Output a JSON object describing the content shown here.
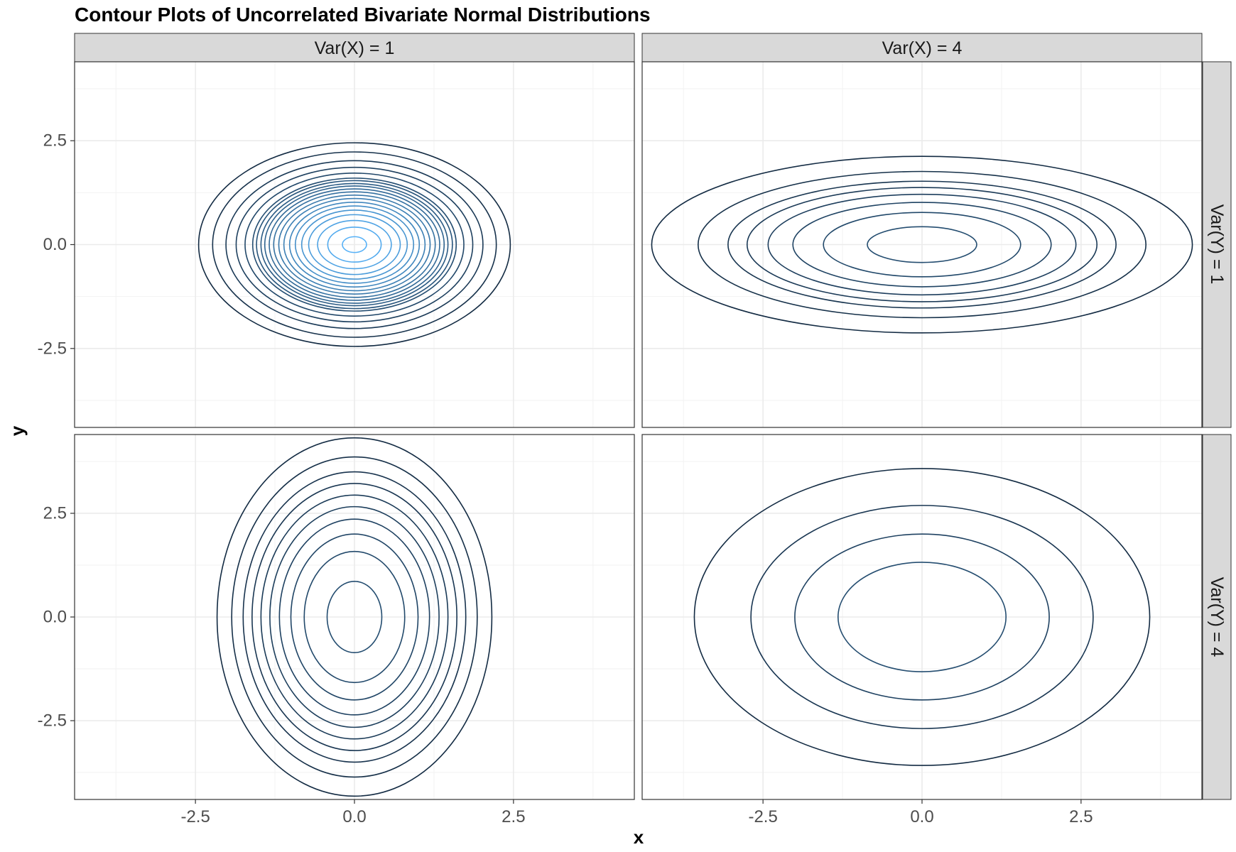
{
  "chart_data": {
    "type": "contour",
    "title": "Contour Plots of Uncorrelated Bivariate Normal Distributions",
    "xlabel": "x",
    "ylabel": "y",
    "xlim": [
      -4.4,
      4.4
    ],
    "ylim": [
      -4.4,
      4.4
    ],
    "x_ticks": [
      -2.5,
      0.0,
      2.5
    ],
    "x_tick_labels": [
      "-2.5",
      "0.0",
      "2.5"
    ],
    "y_ticks": [
      -2.5,
      0.0,
      2.5
    ],
    "y_tick_labels": [
      "-2.5",
      "0.0",
      "2.5"
    ],
    "grid": true,
    "facet_columns": [
      "Var(X) = 1",
      "Var(X) = 4"
    ],
    "facet_rows": [
      "Var(Y) = 1",
      "Var(Y) = 4"
    ],
    "color_low": "#132B43",
    "color_high": "#56B1F7",
    "panels": [
      {
        "col": 0,
        "row": 0,
        "var_x": 1,
        "var_y": 1,
        "contour_x_semi_axes": [
          0.19,
          0.42,
          0.58,
          0.72,
          0.83,
          0.93,
          1.02,
          1.11,
          1.19,
          1.27,
          1.34,
          1.41,
          1.47,
          1.54,
          1.6,
          1.72,
          1.86,
          2.02,
          2.23,
          2.45
        ]
      },
      {
        "col": 1,
        "row": 0,
        "var_x": 4,
        "var_y": 1,
        "contour_x_semi_axes": [
          0.86,
          1.55,
          2.03,
          2.42,
          2.75,
          3.05,
          3.52,
          4.25
        ]
      },
      {
        "col": 0,
        "row": 1,
        "var_x": 1,
        "var_y": 4,
        "contour_x_semi_axes": [
          0.43,
          0.79,
          1.0,
          1.18,
          1.33,
          1.47,
          1.61,
          1.75,
          1.93,
          2.16
        ]
      },
      {
        "col": 1,
        "row": 1,
        "var_x": 4,
        "var_y": 4,
        "contour_x_semi_axes": [
          1.32,
          2.0,
          2.69,
          3.58
        ]
      }
    ]
  }
}
